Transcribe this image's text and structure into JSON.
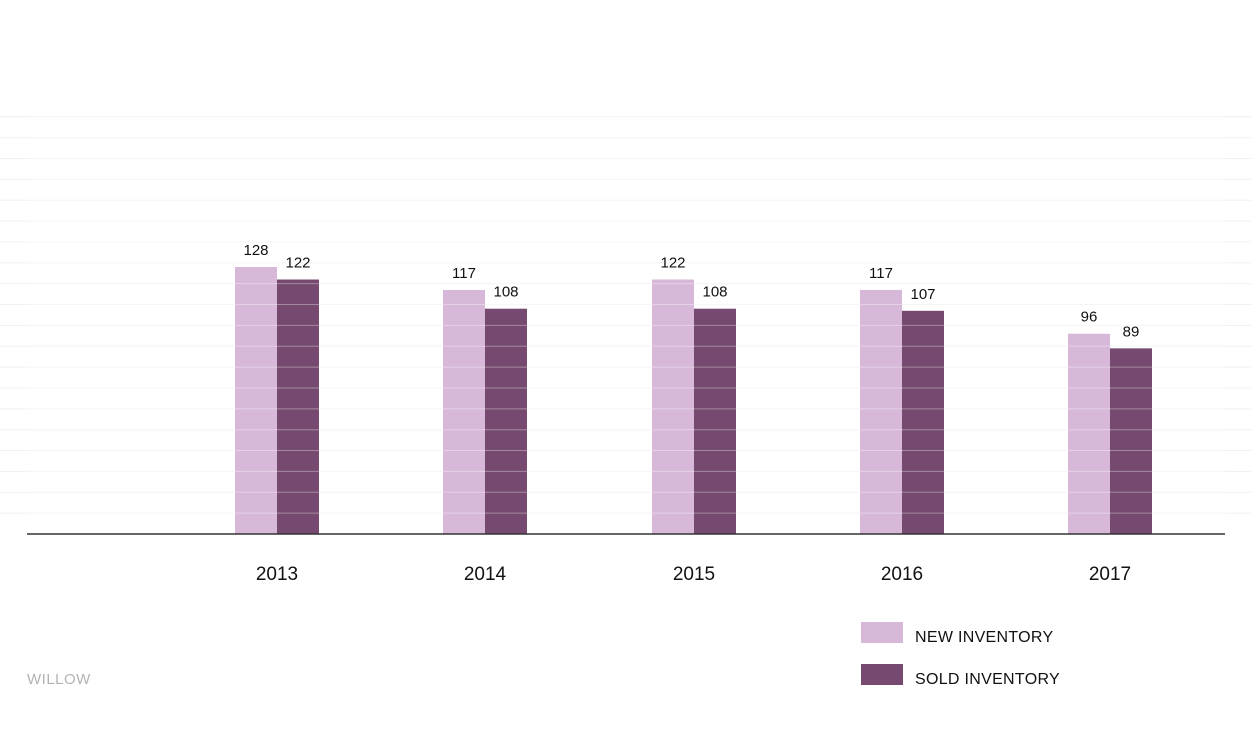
{
  "brand": "WILLOW",
  "colors": {
    "new_inventory": "#d7b8d9",
    "sold_inventory": "#764a70",
    "axis": "#333333",
    "grid": "#f0f0f0",
    "stripe": "#ffffff"
  },
  "chart_data": {
    "type": "bar",
    "title": "",
    "xlabel": "",
    "ylabel": "",
    "categories": [
      "2013",
      "2014",
      "2015",
      "2016",
      "2017"
    ],
    "series": [
      {
        "name": "NEW INVENTORY",
        "values": [
          128,
          117,
          122,
          117,
          96
        ]
      },
      {
        "name": "SOLD INVENTORY",
        "values": [
          122,
          108,
          108,
          107,
          89
        ]
      }
    ],
    "ylim": [
      0,
      200
    ],
    "grid": true,
    "legend_position": "bottom-right",
    "data_labels": true
  }
}
